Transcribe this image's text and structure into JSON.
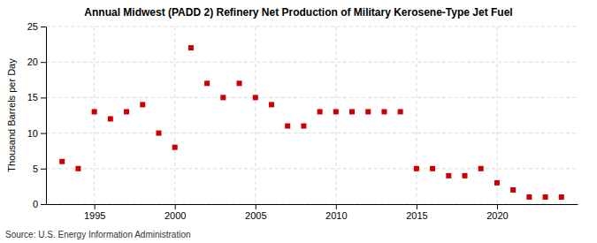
{
  "chart_data": {
    "type": "scatter",
    "title": "Annual Midwest (PADD 2) Refinery Net Production of Military Kerosene-Type Jet Fuel",
    "ylabel": "Thousand Barrels per Day",
    "source": "Source: U.S. Energy Information Administration",
    "x": [
      1993,
      1994,
      1995,
      1996,
      1997,
      1998,
      1999,
      2000,
      2001,
      2002,
      2003,
      2004,
      2005,
      2006,
      2007,
      2008,
      2009,
      2010,
      2011,
      2012,
      2013,
      2014,
      2015,
      2016,
      2017,
      2018,
      2019,
      2020,
      2021,
      2022,
      2023,
      2024
    ],
    "values": [
      6,
      5,
      13,
      12,
      13,
      14,
      10,
      8,
      22,
      17,
      15,
      17,
      15,
      14,
      11,
      11,
      13,
      13,
      13,
      13,
      13,
      13,
      5,
      5,
      4,
      4,
      5,
      3,
      2,
      1,
      1,
      1
    ],
    "color": "#cc0000",
    "marker": "square",
    "xlim": [
      1992,
      2025
    ],
    "ylim": [
      0,
      25
    ],
    "xticks": [
      1995,
      2000,
      2005,
      2010,
      2015,
      2020
    ],
    "yticks": [
      0,
      5,
      10,
      15,
      20,
      25
    ],
    "grid": true
  }
}
